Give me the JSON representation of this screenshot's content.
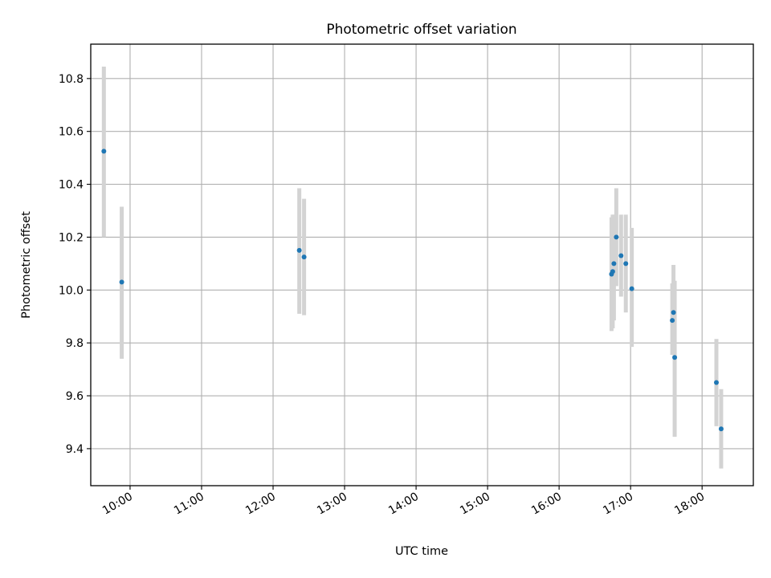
{
  "chart_data": {
    "type": "scatter",
    "title": "Photometric offset variation",
    "xlabel": "UTC time",
    "ylabel": "Photometric offset",
    "x_unit": "UTC time (HH:MM)",
    "xlim": [
      "09:27",
      "18:43"
    ],
    "ylim": [
      9.26,
      10.93
    ],
    "x_ticks": [
      "10:00",
      "11:00",
      "12:00",
      "13:00",
      "14:00",
      "15:00",
      "16:00",
      "17:00",
      "18:00"
    ],
    "y_ticks": [
      9.4,
      9.6,
      9.8,
      10.0,
      10.2,
      10.4,
      10.6,
      10.8
    ],
    "y_tick_labels": [
      "9.4",
      "9.6",
      "9.8",
      "10.0",
      "10.2",
      "10.4",
      "10.6",
      "10.8"
    ],
    "grid": true,
    "colors": {
      "point": "#1f77b4",
      "errorbar": "#d3d3d3",
      "grid": "#b0b0b0",
      "axes": "#000000"
    },
    "series": [
      {
        "points": [
          {
            "x": "09:38",
            "y": 10.525,
            "y_low": 10.2,
            "y_high": 10.845
          },
          {
            "x": "09:53",
            "y": 10.03,
            "y_low": 9.74,
            "y_high": 10.315
          },
          {
            "x": "12:22",
            "y": 10.15,
            "y_low": 9.91,
            "y_high": 10.385
          },
          {
            "x": "12:26",
            "y": 10.125,
            "y_low": 9.905,
            "y_high": 10.345
          },
          {
            "x": "16:44",
            "y": 10.06,
            "y_low": 9.845,
            "y_high": 10.275
          },
          {
            "x": "16:45",
            "y": 10.07,
            "y_low": 9.855,
            "y_high": 10.285
          },
          {
            "x": "16:46",
            "y": 10.1,
            "y_low": 9.885,
            "y_high": 10.285
          },
          {
            "x": "16:48",
            "y": 10.2,
            "y_low": 10.015,
            "y_high": 10.385
          },
          {
            "x": "16:52",
            "y": 10.13,
            "y_low": 9.975,
            "y_high": 10.285
          },
          {
            "x": "16:56",
            "y": 10.1,
            "y_low": 9.915,
            "y_high": 10.285
          },
          {
            "x": "17:01",
            "y": 10.005,
            "y_low": 9.785,
            "y_high": 10.235
          },
          {
            "x": "17:35",
            "y": 9.885,
            "y_low": 9.755,
            "y_high": 10.025
          },
          {
            "x": "17:36",
            "y": 9.915,
            "y_low": 9.795,
            "y_high": 10.095
          },
          {
            "x": "17:37",
            "y": 9.745,
            "y_low": 9.445,
            "y_high": 10.035
          },
          {
            "x": "18:12",
            "y": 9.65,
            "y_low": 9.485,
            "y_high": 9.815
          },
          {
            "x": "18:16",
            "y": 9.475,
            "y_low": 9.325,
            "y_high": 9.625
          }
        ]
      }
    ]
  }
}
